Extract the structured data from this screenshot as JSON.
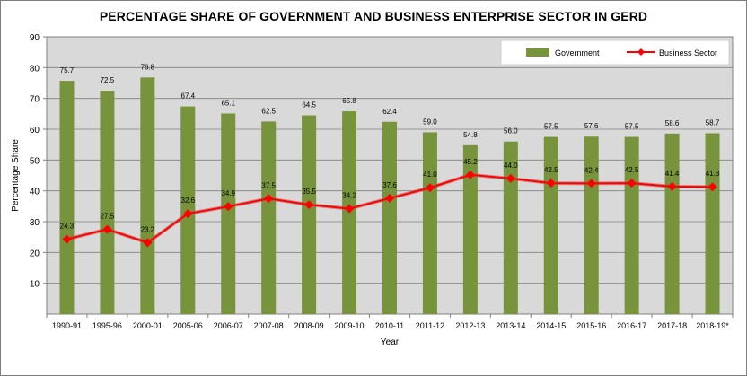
{
  "chart_data": {
    "type": "bar",
    "title": "PERCENTAGE SHARE OF GOVERNMENT AND BUSINESS ENTERPRISE SECTOR IN GERD",
    "xlabel": "Year",
    "ylabel": "Percentage Share",
    "ylim": [
      0,
      90
    ],
    "yticks": [
      10,
      20,
      30,
      40,
      50,
      60,
      70,
      80,
      90
    ],
    "grid": true,
    "legend_position": "top-right",
    "categories": [
      "1990-91",
      "1995-96",
      "2000-01",
      "2005-06",
      "2006-07",
      "2007-08",
      "2008-09",
      "2009-10",
      "2010-11",
      "2011-12",
      "2012-13",
      "2013-14",
      "2014-15",
      "2015-16",
      "2016-17",
      "2017-18",
      "2018-19*"
    ],
    "series": [
      {
        "name": "Government",
        "type": "bar",
        "color": "#77933c",
        "values": [
          75.7,
          72.5,
          76.8,
          67.4,
          65.1,
          62.5,
          64.5,
          65.8,
          62.4,
          59.0,
          54.8,
          56.0,
          57.5,
          57.6,
          57.5,
          58.6,
          58.7
        ],
        "labels": [
          "75.7",
          "72.5",
          "76.8",
          "67.4",
          "65.1",
          "62.5",
          "64.5",
          "65.8",
          "62.4",
          "59.0",
          "54.8",
          "56.0",
          "57.5",
          "57.6",
          "57.5",
          "58.6",
          "58.7"
        ]
      },
      {
        "name": "Business Sector",
        "type": "line",
        "color": "#ff0000",
        "values": [
          24.3,
          27.5,
          23.2,
          32.6,
          34.9,
          37.5,
          35.5,
          34.2,
          37.6,
          41.0,
          45.2,
          44.0,
          42.5,
          42.4,
          42.5,
          41.4,
          41.3
        ],
        "labels": [
          "24.3",
          "27.5",
          "23.2",
          "32.6",
          "34.9",
          "37.5",
          "35.5",
          "34.2",
          "37.6",
          "41.0",
          "45.2",
          "44.0",
          "42.5",
          "42.4",
          "42.5",
          "41.4",
          "41.3"
        ]
      }
    ]
  }
}
